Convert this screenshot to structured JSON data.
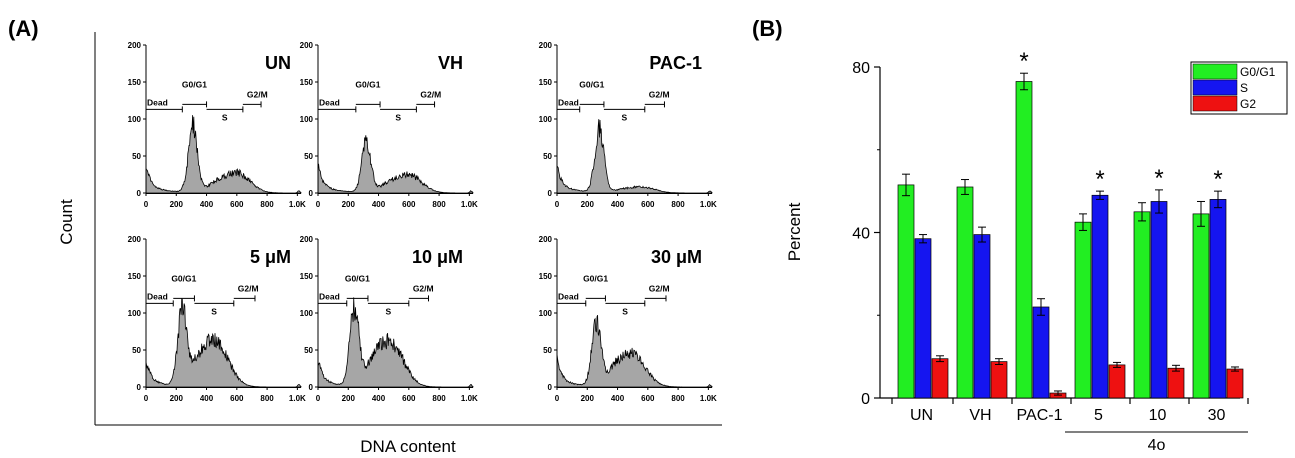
{
  "panels": {
    "a_label": "(A)",
    "b_label": "(B)"
  },
  "histograms": {
    "ylabel": "Count",
    "xlabel": "DNA content",
    "x_ticks": [
      "0",
      "200",
      "400",
      "600",
      "800",
      "1.0K"
    ],
    "y_ticks": [
      "0",
      "50",
      "100",
      "150",
      "200"
    ],
    "xlim": [
      0,
      1024
    ],
    "ylim": [
      0,
      200
    ],
    "fill_color": "#a6a6a6",
    "gate_labels": {
      "dead": "Dead",
      "g0g1": "G0/G1",
      "s": "S",
      "g2m": "G2/M"
    },
    "panels": [
      {
        "title": "UN",
        "peak1_x": 310,
        "peak1_y": 93,
        "peak2_x": 600,
        "peak2_y": 27,
        "gates": [
          0,
          240,
          400,
          640,
          760
        ]
      },
      {
        "title": "VH",
        "peak1_x": 320,
        "peak1_y": 72,
        "peak2_x": 600,
        "peak2_y": 24,
        "gates": [
          0,
          250,
          410,
          650,
          770
        ]
      },
      {
        "title": "PAC-1",
        "peak1_x": 280,
        "peak1_y": 88,
        "peak2_x": 560,
        "peak2_y": 8,
        "gates": [
          0,
          150,
          310,
          580,
          710
        ]
      },
      {
        "title": "5 μM",
        "peak1_x": 240,
        "peak1_y": 103,
        "peak2_x": 460,
        "peak2_y": 58,
        "gates": [
          0,
          180,
          320,
          580,
          720
        ]
      },
      {
        "title": "10 μM",
        "peak1_x": 240,
        "peak1_y": 104,
        "peak2_x": 480,
        "peak2_y": 58,
        "gates": [
          0,
          190,
          330,
          600,
          730
        ]
      },
      {
        "title": "30 μM",
        "peak1_x": 260,
        "peak1_y": 88,
        "peak2_x": 500,
        "peak2_y": 43,
        "gates": [
          0,
          190,
          320,
          580,
          720
        ]
      }
    ]
  },
  "chart_data": {
    "type": "bar",
    "ylabel": "Percent",
    "ylim": [
      0,
      80
    ],
    "y_ticks": [
      "0",
      "40",
      "80"
    ],
    "categories": [
      "UN",
      "VH",
      "PAC-1",
      "5",
      "10",
      "30"
    ],
    "group_label": "4o",
    "series": [
      {
        "name": "G0/G1",
        "color": "#22ee22",
        "values": [
          51.5,
          51.0,
          76.5,
          42.5,
          45.0,
          44.5
        ],
        "errors": [
          2.6,
          1.8,
          2.0,
          2.0,
          2.2,
          3.0
        ]
      },
      {
        "name": "S",
        "color": "#1515f0",
        "values": [
          38.5,
          39.5,
          22.0,
          49.0,
          47.5,
          48.0
        ],
        "errors": [
          1.0,
          1.8,
          2.0,
          1.0,
          2.8,
          2.0
        ]
      },
      {
        "name": "G2",
        "color": "#ee1111",
        "values": [
          9.5,
          8.8,
          1.2,
          8.0,
          7.2,
          7.0
        ],
        "errors": [
          0.7,
          0.7,
          0.5,
          0.6,
          0.7,
          0.5
        ]
      }
    ],
    "significance": [
      "",
      "",
      "*",
      "*",
      "*",
      "*"
    ],
    "legend_position": "top-right",
    "grid": false
  }
}
